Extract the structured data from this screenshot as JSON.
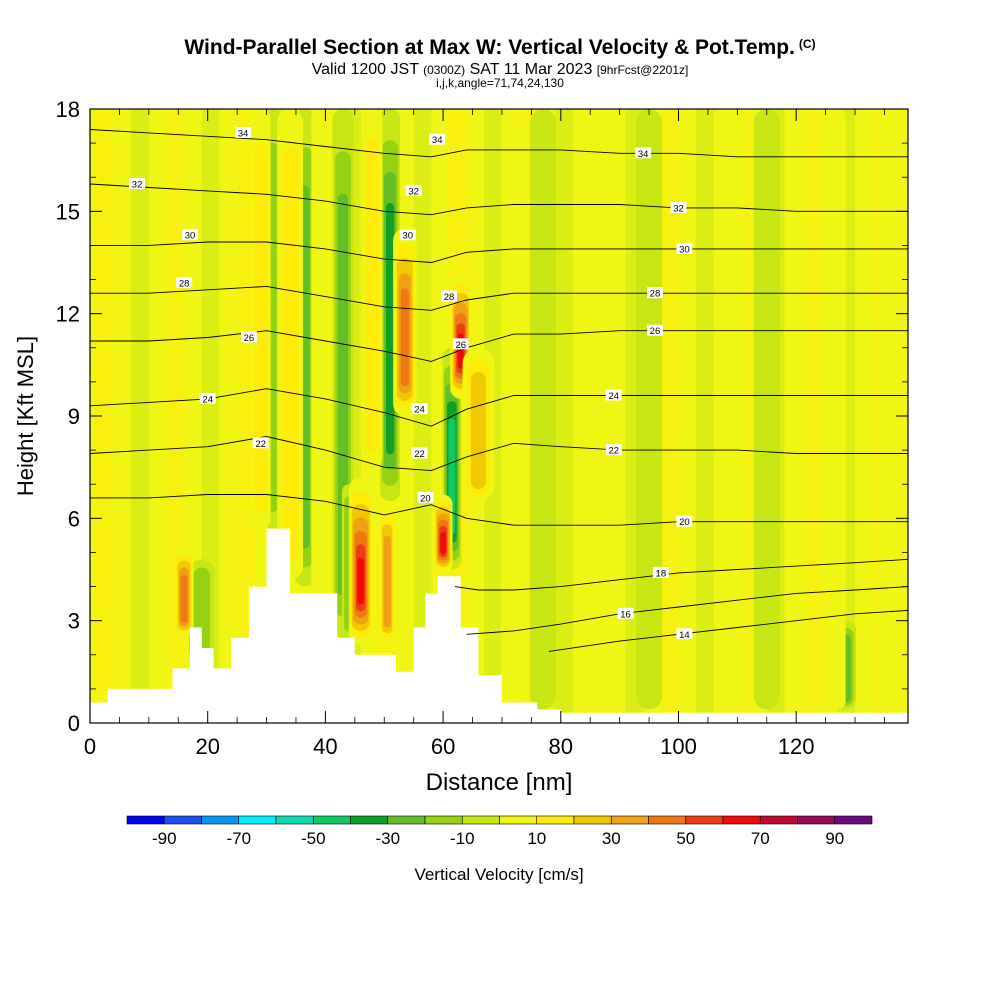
{
  "header": {
    "title": "Wind-Parallel Section at Max W: Vertical Velocity & Pot.Temp.",
    "copyright": "(C)",
    "valid_prefix": "Valid 1200 JST",
    "valid_z": "(0300Z)",
    "valid_date": "SAT 11 Mar 2023",
    "forecast": "[9hrFcst@2201z]",
    "indices": "i,j,k,angle=71,74,24,130"
  },
  "chart_data": {
    "type": "heatmap",
    "xlabel": "Distance [nm]",
    "ylabel": "Height [Kft MSL]",
    "xlim": [
      0,
      139
    ],
    "ylim": [
      0,
      18
    ],
    "xticks": [
      0,
      20,
      40,
      60,
      80,
      100,
      120
    ],
    "yticks": [
      0,
      3,
      6,
      9,
      12,
      15,
      18
    ],
    "colorbar": {
      "label": "Vertical Velocity [cm/s]",
      "tick_labels": [
        "-90",
        "-70",
        "-50",
        "-30",
        "-10",
        "10",
        "30",
        "50",
        "70",
        "90"
      ],
      "bounds": [
        -100,
        -90,
        -80,
        -70,
        -60,
        -50,
        -40,
        -30,
        -20,
        -10,
        0,
        10,
        20,
        30,
        40,
        50,
        60,
        70,
        80,
        90,
        100
      ],
      "colors": [
        "#0000f0",
        "#1e50f0",
        "#0a96f0",
        "#00f0ff",
        "#10dcb4",
        "#10c864",
        "#10a028",
        "#64be28",
        "#96d214",
        "#c8e614",
        "#f0f514",
        "#ffeb0a",
        "#f0c800",
        "#f0a014",
        "#f07814",
        "#f03c14",
        "#f00a0a",
        "#c00a32",
        "#960a5a",
        "#6e0a82"
      ]
    },
    "terrain_profile": {
      "x": [
        0,
        3,
        10,
        14,
        17,
        19,
        21,
        24,
        27,
        30,
        32,
        34,
        38,
        42,
        45,
        49,
        52,
        55,
        57,
        59,
        61,
        63,
        66,
        70,
        76,
        80,
        139
      ],
      "y": [
        0.6,
        1.0,
        1.0,
        1.6,
        2.8,
        2.2,
        1.6,
        2.5,
        4.0,
        5.7,
        5.7,
        3.8,
        3.8,
        2.5,
        2.0,
        2.0,
        1.5,
        2.8,
        3.8,
        4.3,
        4.3,
        2.8,
        1.4,
        0.6,
        0.4,
        0.3,
        0.3
      ]
    },
    "theta_contours": [
      {
        "label": "14",
        "label_at": [
          101,
          2.6
        ],
        "x": [
          78,
          90,
          100,
          110,
          120,
          130,
          139
        ],
        "y": [
          2.1,
          2.4,
          2.6,
          2.8,
          3.0,
          3.2,
          3.3
        ]
      },
      {
        "label": "16",
        "label_at": [
          91,
          3.2
        ],
        "x": [
          64,
          72,
          80,
          90,
          100,
          110,
          120,
          130,
          139
        ],
        "y": [
          2.6,
          2.7,
          2.9,
          3.2,
          3.4,
          3.6,
          3.8,
          3.9,
          4.0
        ]
      },
      {
        "label": "18",
        "label_at": [
          97,
          4.4
        ],
        "x": [
          62,
          66,
          72,
          80,
          90,
          100,
          110,
          120,
          130,
          139
        ],
        "y": [
          4.0,
          3.9,
          3.9,
          4.0,
          4.2,
          4.4,
          4.5,
          4.6,
          4.7,
          4.8
        ]
      },
      {
        "label": "20",
        "label_at": [
          101,
          5.9
        ],
        "x": [
          0,
          10,
          20,
          30,
          40,
          50,
          58,
          64,
          72,
          80,
          90,
          100,
          110,
          120,
          130,
          139
        ],
        "y": [
          6.6,
          6.6,
          6.7,
          6.7,
          6.5,
          6.1,
          6.4,
          6.0,
          5.8,
          5.8,
          5.8,
          5.9,
          5.9,
          5.9,
          5.9,
          5.9
        ]
      },
      {
        "label": "22",
        "label_at": [
          89,
          8.0
        ],
        "x": [
          0,
          10,
          20,
          30,
          40,
          50,
          58,
          64,
          72,
          80,
          90,
          100,
          110,
          120,
          130,
          139
        ],
        "y": [
          7.9,
          8.0,
          8.1,
          8.4,
          8.0,
          7.5,
          7.4,
          7.8,
          8.2,
          8.1,
          8.0,
          8.0,
          8.0,
          7.9,
          7.9,
          7.9
        ]
      },
      {
        "label": "24",
        "label_at": [
          89,
          9.6
        ],
        "x": [
          0,
          10,
          20,
          30,
          40,
          50,
          58,
          64,
          72,
          80,
          90,
          100,
          110,
          120,
          130,
          139
        ],
        "y": [
          9.3,
          9.4,
          9.5,
          9.8,
          9.5,
          9.1,
          8.7,
          9.2,
          9.6,
          9.6,
          9.6,
          9.6,
          9.6,
          9.6,
          9.6,
          9.6
        ]
      },
      {
        "label": "26",
        "label_at": [
          96,
          11.5
        ],
        "x": [
          0,
          10,
          20,
          30,
          40,
          50,
          58,
          64,
          72,
          80,
          90,
          100,
          110,
          120,
          130,
          139
        ],
        "y": [
          11.2,
          11.2,
          11.3,
          11.5,
          11.2,
          10.9,
          10.6,
          11.0,
          11.4,
          11.4,
          11.5,
          11.5,
          11.5,
          11.5,
          11.5,
          11.5
        ]
      },
      {
        "label": "28",
        "label_at": [
          96,
          12.6
        ],
        "x": [
          0,
          10,
          20,
          30,
          40,
          50,
          58,
          64,
          72,
          80,
          90,
          100,
          110,
          120,
          130,
          139
        ],
        "y": [
          12.6,
          12.6,
          12.7,
          12.8,
          12.5,
          12.2,
          12.1,
          12.4,
          12.6,
          12.6,
          12.6,
          12.6,
          12.6,
          12.6,
          12.6,
          12.6
        ]
      },
      {
        "label": "30",
        "label_at": [
          101,
          13.9
        ],
        "x": [
          0,
          10,
          20,
          30,
          40,
          50,
          58,
          64,
          72,
          80,
          90,
          100,
          110,
          120,
          130,
          139
        ],
        "y": [
          14.0,
          14.0,
          14.1,
          14.1,
          13.9,
          13.6,
          13.5,
          13.8,
          13.9,
          13.9,
          13.9,
          13.9,
          13.9,
          13.9,
          13.9,
          13.9
        ]
      },
      {
        "label": "32",
        "label_at": [
          100,
          15.1
        ],
        "x": [
          0,
          10,
          20,
          30,
          40,
          50,
          58,
          64,
          72,
          80,
          90,
          100,
          110,
          120,
          130,
          139
        ],
        "y": [
          15.8,
          15.7,
          15.6,
          15.5,
          15.3,
          15.0,
          14.9,
          15.1,
          15.2,
          15.2,
          15.2,
          15.1,
          15.1,
          15.0,
          15.0,
          15.0
        ]
      },
      {
        "label": "34",
        "label_at": [
          94,
          16.7
        ],
        "x": [
          0,
          10,
          20,
          30,
          40,
          50,
          58,
          64,
          72,
          80,
          90,
          100,
          110,
          120,
          130,
          139
        ],
        "y": [
          17.4,
          17.3,
          17.2,
          17.1,
          16.9,
          16.7,
          16.6,
          16.8,
          16.8,
          16.8,
          16.7,
          16.7,
          16.6,
          16.6,
          16.6,
          16.6
        ]
      }
    ],
    "extra_contour_labels": [
      {
        "label": "32",
        "at": [
          8,
          15.8
        ]
      },
      {
        "label": "30",
        "at": [
          17,
          14.3
        ]
      },
      {
        "label": "28",
        "at": [
          16,
          12.9
        ]
      },
      {
        "label": "26",
        "at": [
          27,
          11.3
        ]
      },
      {
        "label": "24",
        "at": [
          20,
          9.5
        ]
      },
      {
        "label": "22",
        "at": [
          29,
          8.2
        ]
      },
      {
        "label": "34",
        "at": [
          26,
          17.3
        ]
      },
      {
        "label": "34",
        "at": [
          59,
          17.1
        ]
      },
      {
        "label": "32",
        "at": [
          55,
          15.6
        ]
      },
      {
        "label": "30",
        "at": [
          54,
          14.3
        ]
      },
      {
        "label": "28",
        "at": [
          61,
          12.5
        ]
      },
      {
        "label": "26",
        "at": [
          63,
          11.1
        ]
      },
      {
        "label": "24",
        "at": [
          56,
          9.2
        ]
      },
      {
        "label": "22",
        "at": [
          56,
          7.9
        ]
      },
      {
        "label": "20",
        "at": [
          57,
          6.6
        ]
      }
    ],
    "updraft_columns": [
      {
        "x": 16,
        "w": 1.4,
        "y0": 2.5,
        "y1": 5.2,
        "v": 55
      },
      {
        "x": 29,
        "w": 1.5,
        "y0": 5.7,
        "y1": 18,
        "v": 20
      },
      {
        "x": 34,
        "w": 2.0,
        "y0": 4.2,
        "y1": 18,
        "v": 25
      },
      {
        "x": 39,
        "w": 1.2,
        "y0": 3.8,
        "y1": 18,
        "v": 15
      },
      {
        "x": 46,
        "w": 1.8,
        "y0": 2.3,
        "y1": 7.2,
        "v": 72
      },
      {
        "x": 48,
        "w": 1.5,
        "y0": 7.5,
        "y1": 18,
        "v": 25
      },
      {
        "x": 53.5,
        "w": 1.8,
        "y0": 9.0,
        "y1": 14.5,
        "v": 55
      },
      {
        "x": 50.5,
        "w": 1.2,
        "y0": 2.3,
        "y1": 6.5,
        "v": 45
      },
      {
        "x": 60,
        "w": 1.4,
        "y0": 4.4,
        "y1": 6.7,
        "v": 75
      },
      {
        "x": 63,
        "w": 1.6,
        "y0": 9.5,
        "y1": 13.2,
        "v": 72
      },
      {
        "x": 66,
        "w": 2.5,
        "y0": 6.5,
        "y1": 11.0,
        "v": 35
      },
      {
        "x": 72,
        "w": 2.0,
        "y0": 0.6,
        "y1": 18,
        "v": 15
      },
      {
        "x": 86,
        "w": 3.0,
        "y0": 0.4,
        "y1": 18,
        "v": 12
      },
      {
        "x": 109,
        "w": 2.0,
        "y0": 0.4,
        "y1": 18,
        "v": 18
      },
      {
        "x": 120,
        "w": 1.5,
        "y0": 0.4,
        "y1": 18,
        "v": 15
      },
      {
        "x": 127,
        "w": 1.2,
        "y0": 0.4,
        "y1": 18,
        "v": 15
      },
      {
        "x": 136,
        "w": 2.0,
        "y0": 0.4,
        "y1": 18,
        "v": 12
      }
    ],
    "downdraft_columns": [
      {
        "x": 19,
        "w": 2.0,
        "y0": 1.8,
        "y1": 4.8,
        "v": -20
      },
      {
        "x": 31,
        "w": 1.5,
        "y0": 5.7,
        "y1": 18,
        "v": -25
      },
      {
        "x": 36.5,
        "w": 1.5,
        "y0": 4.0,
        "y1": 18,
        "v": -30
      },
      {
        "x": 43,
        "w": 1.6,
        "y0": 2.5,
        "y1": 18,
        "v": -30
      },
      {
        "x": 51,
        "w": 1.5,
        "y0": 6.5,
        "y1": 18,
        "v": -40
      },
      {
        "x": 61.5,
        "w": 1.4,
        "y0": 4.5,
        "y1": 11.0,
        "v": -55
      },
      {
        "x": 44,
        "w": 1.0,
        "y0": 2.5,
        "y1": 7.0,
        "v": -25
      },
      {
        "x": 77,
        "w": 2.0,
        "y0": 0.4,
        "y1": 18,
        "v": -12
      },
      {
        "x": 95,
        "w": 2.0,
        "y0": 0.4,
        "y1": 18,
        "v": -18
      },
      {
        "x": 115,
        "w": 2.0,
        "y0": 0.4,
        "y1": 18,
        "v": -12
      },
      {
        "x": 128.5,
        "w": 1.5,
        "y0": 0.4,
        "y1": 3.0,
        "v": -30
      }
    ]
  }
}
